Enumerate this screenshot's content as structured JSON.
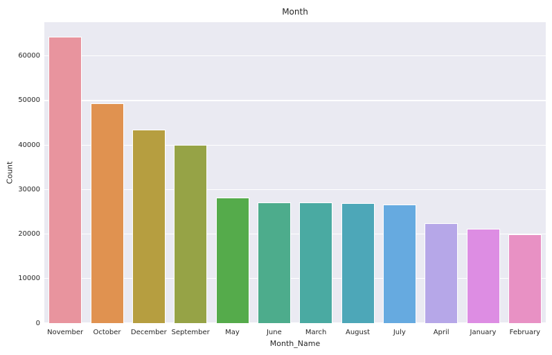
{
  "chart_data": {
    "type": "bar",
    "title": "Month",
    "xlabel": "Month_Name",
    "ylabel": "Count",
    "categories": [
      "November",
      "October",
      "December",
      "September",
      "May",
      "June",
      "March",
      "August",
      "July",
      "April",
      "January",
      "February"
    ],
    "values": [
      64400,
      49400,
      43500,
      40000,
      28200,
      27100,
      27050,
      26900,
      26700,
      22500,
      21200,
      20000
    ],
    "bar_colors": [
      "#e8949e",
      "#e09250",
      "#b69e40",
      "#96a346",
      "#55ab4b",
      "#4dac8c",
      "#4aaaa2",
      "#4da7b8",
      "#66aae0",
      "#b6a7e8",
      "#dd8de3",
      "#e891c4"
    ],
    "yticks": [
      0,
      10000,
      20000,
      30000,
      40000,
      50000,
      60000
    ],
    "ytick_labels": [
      "0",
      "10000",
      "20000",
      "30000",
      "40000",
      "50000",
      "60000"
    ],
    "ylim": [
      0,
      67600
    ],
    "grid": true,
    "legend": "none",
    "plot_bg_color": "#eaeaf2",
    "grid_color": "#ffffff",
    "text_color": "#262626",
    "figure_bg_color": "#ffffff"
  }
}
